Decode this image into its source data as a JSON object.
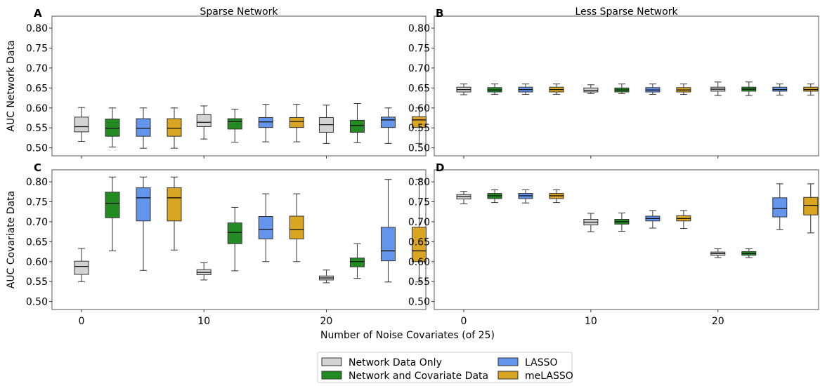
{
  "chart_data": {
    "type": "box",
    "xlabel": "Number of Noise Covariates (of 25)",
    "x_ticks": [
      0,
      10,
      20
    ],
    "ylim": [
      0.48,
      0.83
    ],
    "y_ticks": [
      "0.50",
      "0.55",
      "0.60",
      "0.65",
      "0.70",
      "0.75",
      "0.80"
    ],
    "series_names": [
      "Network Data Only",
      "Network and Covariate Data",
      "LASSO",
      "meLASSO"
    ],
    "colors": {
      "Network Data Only": "#d3d3d3",
      "Network and Covariate Data": "#228b22",
      "LASSO": "#6495ed",
      "meLASSO": "#daa520"
    },
    "legend": {
      "placement": "bottom-center",
      "entries": [
        "Network Data Only",
        "Network and Covariate Data",
        "LASSO",
        "meLASSO"
      ]
    },
    "panels": [
      {
        "letter": "A",
        "title": "Sparse Network",
        "ylabel": "AUC Network Data",
        "show_x_ticklabels": false,
        "groups": [
          {
            "x": 0,
            "boxes": [
              {
                "series": "Network Data Only",
                "whislo": 0.516,
                "q1": 0.54,
                "med": 0.553,
                "q3": 0.577,
                "whishi": 0.601
              },
              {
                "series": "Network and Covariate Data",
                "whislo": 0.502,
                "q1": 0.529,
                "med": 0.549,
                "q3": 0.572,
                "whishi": 0.6
              },
              {
                "series": "LASSO",
                "whislo": 0.499,
                "q1": 0.529,
                "med": 0.549,
                "q3": 0.573,
                "whishi": 0.6
              },
              {
                "series": "meLASSO",
                "whislo": 0.499,
                "q1": 0.529,
                "med": 0.549,
                "q3": 0.573,
                "whishi": 0.6
              }
            ]
          },
          {
            "x": 10,
            "boxes": [
              {
                "series": "Network Data Only",
                "whislo": 0.522,
                "q1": 0.553,
                "med": 0.564,
                "q3": 0.583,
                "whishi": 0.605
              },
              {
                "series": "Network and Covariate Data",
                "whislo": 0.514,
                "q1": 0.547,
                "med": 0.566,
                "q3": 0.573,
                "whishi": 0.597
              },
              {
                "series": "LASSO",
                "whislo": 0.515,
                "q1": 0.551,
                "med": 0.565,
                "q3": 0.576,
                "whishi": 0.609
              },
              {
                "series": "meLASSO",
                "whislo": 0.515,
                "q1": 0.551,
                "med": 0.566,
                "q3": 0.576,
                "whishi": 0.609
              }
            ]
          },
          {
            "x": 20,
            "boxes": [
              {
                "series": "Network Data Only",
                "whislo": 0.511,
                "q1": 0.539,
                "med": 0.558,
                "q3": 0.576,
                "whishi": 0.607
              },
              {
                "series": "Network and Covariate Data",
                "whislo": 0.513,
                "q1": 0.539,
                "med": 0.556,
                "q3": 0.569,
                "whishi": 0.611
              },
              {
                "series": "LASSO",
                "whislo": 0.511,
                "q1": 0.551,
                "med": 0.57,
                "q3": 0.577,
                "whishi": 0.6
              },
              {
                "series": "meLASSO",
                "whislo": 0.511,
                "q1": 0.551,
                "med": 0.57,
                "q3": 0.578,
                "whishi": 0.6
              }
            ]
          }
        ]
      },
      {
        "letter": "B",
        "title": "Less Sparse Network",
        "ylabel": "",
        "show_x_ticklabels": false,
        "groups": [
          {
            "x": 0,
            "boxes": [
              {
                "series": "Network Data Only",
                "whislo": 0.633,
                "q1": 0.64,
                "med": 0.646,
                "q3": 0.652,
                "whishi": 0.66
              },
              {
                "series": "Network and Covariate Data",
                "whislo": 0.634,
                "q1": 0.64,
                "med": 0.645,
                "q3": 0.651,
                "whishi": 0.66
              },
              {
                "series": "LASSO",
                "whislo": 0.634,
                "q1": 0.64,
                "med": 0.646,
                "q3": 0.652,
                "whishi": 0.66
              },
              {
                "series": "meLASSO",
                "whislo": 0.634,
                "q1": 0.64,
                "med": 0.646,
                "q3": 0.652,
                "whishi": 0.66
              }
            ]
          },
          {
            "x": 10,
            "boxes": [
              {
                "series": "Network Data Only",
                "whislo": 0.636,
                "q1": 0.64,
                "med": 0.644,
                "q3": 0.65,
                "whishi": 0.658
              },
              {
                "series": "Network and Covariate Data",
                "whislo": 0.636,
                "q1": 0.64,
                "med": 0.645,
                "q3": 0.65,
                "whishi": 0.66
              },
              {
                "series": "LASSO",
                "whislo": 0.634,
                "q1": 0.64,
                "med": 0.645,
                "q3": 0.651,
                "whishi": 0.66
              },
              {
                "series": "meLASSO",
                "whislo": 0.634,
                "q1": 0.64,
                "med": 0.645,
                "q3": 0.651,
                "whishi": 0.66
              }
            ]
          },
          {
            "x": 20,
            "boxes": [
              {
                "series": "Network Data Only",
                "whislo": 0.631,
                "q1": 0.642,
                "med": 0.647,
                "q3": 0.652,
                "whishi": 0.665
              },
              {
                "series": "Network and Covariate Data",
                "whislo": 0.631,
                "q1": 0.642,
                "med": 0.647,
                "q3": 0.652,
                "whishi": 0.665
              },
              {
                "series": "LASSO",
                "whislo": 0.632,
                "q1": 0.642,
                "med": 0.646,
                "q3": 0.652,
                "whishi": 0.66
              },
              {
                "series": "meLASSO",
                "whislo": 0.632,
                "q1": 0.642,
                "med": 0.646,
                "q3": 0.652,
                "whishi": 0.66
              }
            ]
          }
        ]
      },
      {
        "letter": "C",
        "title": "",
        "ylabel": "AUC Covariate Data",
        "show_x_ticklabels": true,
        "groups": [
          {
            "x": 0,
            "boxes": [
              {
                "series": "Network Data Only",
                "whislo": 0.55,
                "q1": 0.568,
                "med": 0.588,
                "q3": 0.601,
                "whishi": 0.633
              },
              {
                "series": "Network and Covariate Data",
                "whislo": 0.627,
                "q1": 0.71,
                "med": 0.746,
                "q3": 0.774,
                "whishi": 0.812
              },
              {
                "series": "LASSO",
                "whislo": 0.578,
                "q1": 0.702,
                "med": 0.76,
                "q3": 0.785,
                "whishi": 0.812
              },
              {
                "series": "meLASSO",
                "whislo": 0.629,
                "q1": 0.702,
                "med": 0.76,
                "q3": 0.785,
                "whishi": 0.812
              }
            ]
          },
          {
            "x": 10,
            "boxes": [
              {
                "series": "Network Data Only",
                "whislo": 0.554,
                "q1": 0.567,
                "med": 0.573,
                "q3": 0.58,
                "whishi": 0.597
              },
              {
                "series": "Network and Covariate Data",
                "whislo": 0.577,
                "q1": 0.645,
                "med": 0.673,
                "q3": 0.697,
                "whishi": 0.736
              },
              {
                "series": "LASSO",
                "whislo": 0.6,
                "q1": 0.657,
                "med": 0.681,
                "q3": 0.713,
                "whishi": 0.77
              },
              {
                "series": "meLASSO",
                "whislo": 0.6,
                "q1": 0.657,
                "med": 0.68,
                "q3": 0.714,
                "whishi": 0.77
              }
            ]
          },
          {
            "x": 20,
            "boxes": [
              {
                "series": "Network Data Only",
                "whislo": 0.547,
                "q1": 0.554,
                "med": 0.559,
                "q3": 0.564,
                "whishi": 0.579
              },
              {
                "series": "Network and Covariate Data",
                "whislo": 0.558,
                "q1": 0.587,
                "med": 0.6,
                "q3": 0.609,
                "whishi": 0.645
              },
              {
                "series": "LASSO",
                "whislo": 0.549,
                "q1": 0.602,
                "med": 0.627,
                "q3": 0.686,
                "whishi": 0.806
              },
              {
                "series": "meLASSO",
                "whislo": 0.549,
                "q1": 0.6,
                "med": 0.627,
                "q3": 0.686,
                "whishi": 0.806
              }
            ]
          }
        ]
      },
      {
        "letter": "D",
        "title": "",
        "ylabel": "",
        "show_x_ticklabels": true,
        "groups": [
          {
            "x": 0,
            "boxes": [
              {
                "series": "Network Data Only",
                "whislo": 0.745,
                "q1": 0.757,
                "med": 0.763,
                "q3": 0.768,
                "whishi": 0.776
              },
              {
                "series": "Network and Covariate Data",
                "whislo": 0.748,
                "q1": 0.758,
                "med": 0.765,
                "q3": 0.771,
                "whishi": 0.78
              },
              {
                "series": "LASSO",
                "whislo": 0.747,
                "q1": 0.758,
                "med": 0.765,
                "q3": 0.771,
                "whishi": 0.78
              },
              {
                "series": "meLASSO",
                "whislo": 0.748,
                "q1": 0.758,
                "med": 0.765,
                "q3": 0.771,
                "whishi": 0.78
              }
            ]
          },
          {
            "x": 10,
            "boxes": [
              {
                "series": "Network Data Only",
                "whislo": 0.675,
                "q1": 0.692,
                "med": 0.699,
                "q3": 0.706,
                "whishi": 0.721
              },
              {
                "series": "Network and Covariate Data",
                "whislo": 0.676,
                "q1": 0.694,
                "med": 0.7,
                "q3": 0.706,
                "whishi": 0.722
              },
              {
                "series": "LASSO",
                "whislo": 0.684,
                "q1": 0.702,
                "med": 0.708,
                "q3": 0.714,
                "whishi": 0.728
              },
              {
                "series": "meLASSO",
                "whislo": 0.683,
                "q1": 0.702,
                "med": 0.708,
                "q3": 0.715,
                "whishi": 0.728
              }
            ]
          },
          {
            "x": 20,
            "boxes": [
              {
                "series": "Network Data Only",
                "whislo": 0.61,
                "q1": 0.616,
                "med": 0.62,
                "q3": 0.624,
                "whishi": 0.632
              },
              {
                "series": "Network and Covariate Data",
                "whislo": 0.61,
                "q1": 0.616,
                "med": 0.62,
                "q3": 0.625,
                "whishi": 0.632
              },
              {
                "series": "LASSO",
                "whislo": 0.68,
                "q1": 0.712,
                "med": 0.733,
                "q3": 0.76,
                "whishi": 0.795
              },
              {
                "series": "meLASSO",
                "whislo": 0.672,
                "q1": 0.717,
                "med": 0.741,
                "q3": 0.761,
                "whishi": 0.795
              }
            ]
          }
        ]
      }
    ]
  }
}
